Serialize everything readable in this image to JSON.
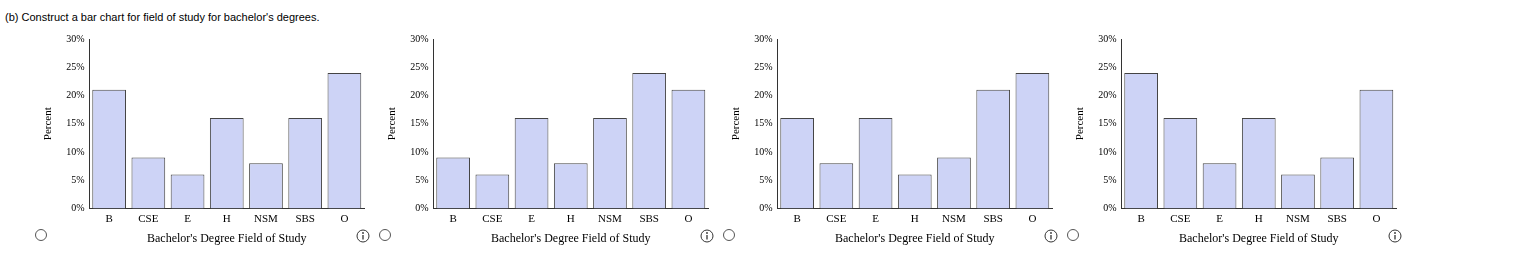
{
  "heading": "(b) Construct a bar chart for field of study for bachelor's degrees.",
  "chart_data": [
    {
      "type": "bar",
      "categories": [
        "B",
        "CSE",
        "E",
        "H",
        "NSM",
        "SBS",
        "O"
      ],
      "values": [
        21,
        9,
        6,
        16,
        8,
        16,
        24
      ],
      "color": "#cdd3f6",
      "x_label": "Bachelor's Degree Field of Study",
      "y_label": "Percent",
      "ylim": [
        0,
        30
      ],
      "yticks": [
        {
          "value": 0,
          "label": "0%"
        },
        {
          "value": 5,
          "label": "5%"
        },
        {
          "value": 10,
          "label": "10%"
        },
        {
          "value": 15,
          "label": "15%"
        },
        {
          "value": 20,
          "label": "20%"
        },
        {
          "value": 25,
          "label": "25%"
        },
        {
          "value": 30,
          "label": "30%"
        }
      ],
      "grid": false
    },
    {
      "type": "bar",
      "categories": [
        "B",
        "CSE",
        "E",
        "H",
        "NSM",
        "SBS",
        "O"
      ],
      "values": [
        9,
        6,
        16,
        8,
        16,
        24,
        21
      ],
      "color": "#cdd3f6",
      "x_label": "Bachelor's Degree Field of Study",
      "y_label": "Percent",
      "ylim": [
        0,
        30
      ],
      "yticks": [
        {
          "value": 0,
          "label": "0%"
        },
        {
          "value": 5,
          "label": "5%"
        },
        {
          "value": 10,
          "label": "10%"
        },
        {
          "value": 15,
          "label": "15%"
        },
        {
          "value": 20,
          "label": "20%"
        },
        {
          "value": 25,
          "label": "25%"
        },
        {
          "value": 30,
          "label": "30%"
        }
      ],
      "grid": false
    },
    {
      "type": "bar",
      "categories": [
        "B",
        "CSE",
        "E",
        "H",
        "NSM",
        "SBS",
        "O"
      ],
      "values": [
        16,
        8,
        16,
        6,
        9,
        21,
        24
      ],
      "color": "#cdd3f6",
      "x_label": "Bachelor's Degree Field of Study",
      "y_label": "Percent",
      "ylim": [
        0,
        30
      ],
      "yticks": [
        {
          "value": 0,
          "label": "0%"
        },
        {
          "value": 5,
          "label": "5%"
        },
        {
          "value": 10,
          "label": "10%"
        },
        {
          "value": 15,
          "label": "15%"
        },
        {
          "value": 20,
          "label": "20%"
        },
        {
          "value": 25,
          "label": "25%"
        },
        {
          "value": 30,
          "label": "30%"
        }
      ],
      "grid": false
    },
    {
      "type": "bar",
      "categories": [
        "B",
        "CSE",
        "E",
        "H",
        "NSM",
        "SBS",
        "O"
      ],
      "values": [
        24,
        16,
        8,
        16,
        6,
        9,
        21
      ],
      "color": "#cdd3f6",
      "x_label": "Bachelor's Degree Field of Study",
      "y_label": "Percent",
      "ylim": [
        0,
        30
      ],
      "yticks": [
        {
          "value": 0,
          "label": "0%"
        },
        {
          "value": 5,
          "label": "5%"
        },
        {
          "value": 10,
          "label": "10%"
        },
        {
          "value": 15,
          "label": "15%"
        },
        {
          "value": 20,
          "label": "20%"
        },
        {
          "value": 25,
          "label": "25%"
        },
        {
          "value": 30,
          "label": "30%"
        }
      ],
      "grid": false
    }
  ]
}
